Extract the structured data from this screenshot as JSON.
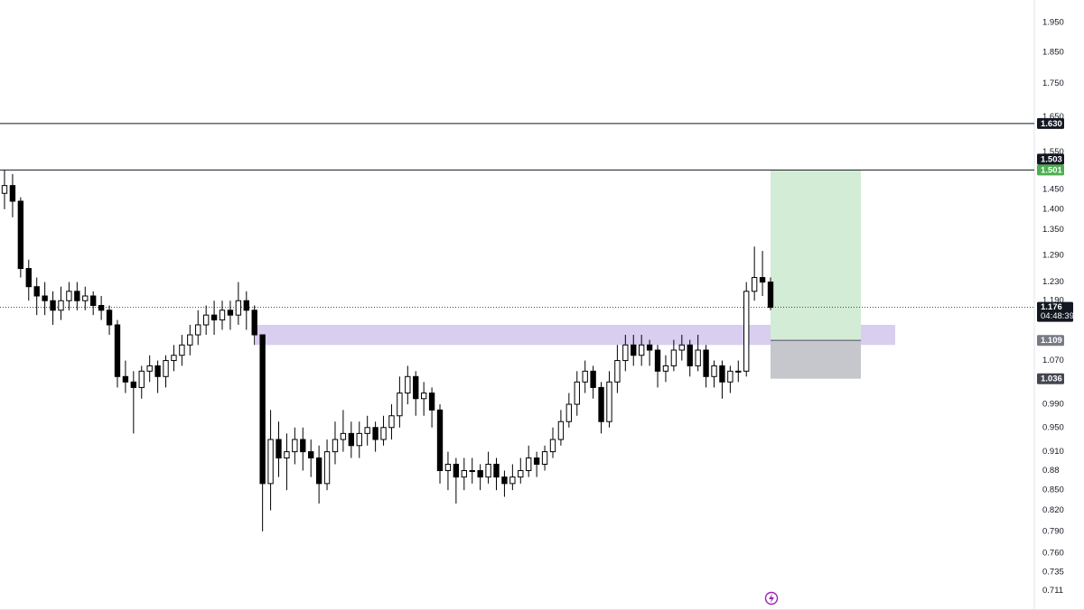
{
  "chart_data": {
    "type": "candlestick",
    "log_scale": true,
    "grid": false,
    "up_color": "#ffffff",
    "down_color": "#000000",
    "ylim": [
      0.687,
      2.03
    ],
    "yticks": [
      {
        "value": 1.95,
        "label": "1.950"
      },
      {
        "value": 1.85,
        "label": "1.850"
      },
      {
        "value": 1.75,
        "label": "1.750"
      },
      {
        "value": 1.65,
        "label": "1.650"
      },
      {
        "value": 1.55,
        "label": "1.550"
      },
      {
        "value": 1.45,
        "label": "1.450"
      },
      {
        "value": 1.4,
        "label": "1.400"
      },
      {
        "value": 1.35,
        "label": "1.350"
      },
      {
        "value": 1.29,
        "label": "1.290"
      },
      {
        "value": 1.23,
        "label": "1.230"
      },
      {
        "value": 1.19,
        "label": "1.190"
      },
      {
        "value": 1.07,
        "label": "1.070"
      },
      {
        "value": 0.99,
        "label": "0.990"
      },
      {
        "value": 0.95,
        "label": "0.950"
      },
      {
        "value": 0.91,
        "label": "0.910"
      },
      0.88,
      {
        "value": 0.85,
        "label": "0.850"
      },
      {
        "value": 0.82,
        "label": "0.820"
      },
      {
        "value": 0.79,
        "label": "0.790"
      },
      {
        "value": 0.76,
        "label": "0.760"
      },
      0.735,
      0.711
    ],
    "open": [
      1.44,
      1.46,
      1.42,
      1.26,
      1.22,
      1.2,
      1.19,
      1.17,
      1.19,
      1.21,
      1.19,
      1.2,
      1.18,
      1.17,
      1.14,
      1.04,
      1.03,
      1.02,
      1.05,
      1.06,
      1.04,
      1.07,
      1.08,
      1.1,
      1.12,
      1.14,
      1.16,
      1.15,
      1.17,
      1.16,
      1.19,
      1.17,
      1.12,
      0.86,
      0.93,
      0.9,
      0.91,
      0.93,
      0.91,
      0.9,
      0.86,
      0.91,
      0.93,
      0.94,
      0.92,
      0.94,
      0.95,
      0.93,
      0.95,
      0.97,
      1.01,
      1.04,
      1.0,
      1.01,
      0.98,
      0.88,
      0.89,
      0.87,
      0.88,
      0.88,
      0.87,
      0.89,
      0.87,
      0.86,
      0.87,
      0.88,
      0.9,
      0.89,
      0.91,
      0.93,
      0.96,
      0.99,
      1.03,
      1.05,
      1.02,
      0.96,
      1.03,
      1.07,
      1.1,
      1.08,
      1.1,
      1.09,
      1.05,
      1.06,
      1.09,
      1.1,
      1.06,
      1.09,
      1.04,
      1.06,
      1.03,
      1.05,
      1.05,
      1.21,
      1.24,
      1.23
    ],
    "high": [
      1.5,
      1.49,
      1.43,
      1.28,
      1.24,
      1.23,
      1.21,
      1.22,
      1.23,
      1.23,
      1.22,
      1.21,
      1.2,
      1.18,
      1.15,
      1.07,
      1.05,
      1.06,
      1.08,
      1.07,
      1.08,
      1.1,
      1.12,
      1.14,
      1.17,
      1.18,
      1.19,
      1.19,
      1.19,
      1.23,
      1.21,
      1.18,
      1.12,
      0.98,
      0.96,
      0.94,
      0.95,
      0.95,
      0.93,
      0.92,
      0.93,
      0.96,
      0.98,
      0.96,
      0.96,
      0.97,
      0.96,
      0.97,
      0.99,
      1.04,
      1.06,
      1.05,
      1.03,
      1.02,
      0.99,
      0.91,
      0.9,
      0.9,
      0.9,
      0.89,
      0.91,
      0.9,
      0.88,
      0.89,
      0.9,
      0.92,
      0.91,
      0.92,
      0.95,
      0.98,
      1.01,
      1.05,
      1.07,
      1.06,
      1.03,
      1.05,
      1.1,
      1.12,
      1.12,
      1.12,
      1.11,
      1.1,
      1.08,
      1.11,
      1.12,
      1.11,
      1.12,
      1.1,
      1.07,
      1.07,
      1.06,
      1.07,
      1.23,
      1.31,
      1.3,
      1.24
    ],
    "low": [
      1.4,
      1.38,
      1.24,
      1.19,
      1.16,
      1.16,
      1.14,
      1.15,
      1.17,
      1.17,
      1.17,
      1.16,
      1.15,
      1.12,
      1.02,
      1.01,
      0.94,
      1.0,
      1.03,
      1.01,
      1.02,
      1.05,
      1.06,
      1.08,
      1.1,
      1.12,
      1.12,
      1.13,
      1.13,
      1.14,
      1.13,
      1.1,
      0.79,
      0.82,
      0.87,
      0.85,
      0.89,
      0.88,
      0.87,
      0.83,
      0.85,
      0.89,
      0.91,
      0.9,
      0.9,
      0.92,
      0.91,
      0.92,
      0.93,
      0.95,
      0.99,
      0.97,
      0.97,
      0.95,
      0.86,
      0.85,
      0.83,
      0.85,
      0.86,
      0.85,
      0.86,
      0.85,
      0.84,
      0.85,
      0.86,
      0.87,
      0.87,
      0.88,
      0.9,
      0.92,
      0.95,
      0.97,
      1.01,
      1.0,
      0.94,
      0.95,
      1.01,
      1.05,
      1.06,
      1.06,
      1.06,
      1.02,
      1.03,
      1.05,
      1.07,
      1.04,
      1.05,
      1.02,
      1.02,
      1.0,
      1.01,
      1.03,
      1.04,
      1.19,
      1.2,
      1.17
    ],
    "close": [
      1.46,
      1.42,
      1.26,
      1.22,
      1.2,
      1.19,
      1.17,
      1.19,
      1.21,
      1.19,
      1.2,
      1.18,
      1.17,
      1.14,
      1.04,
      1.03,
      1.02,
      1.05,
      1.06,
      1.04,
      1.07,
      1.08,
      1.1,
      1.12,
      1.14,
      1.16,
      1.15,
      1.17,
      1.16,
      1.19,
      1.17,
      1.12,
      0.86,
      0.93,
      0.9,
      0.91,
      0.93,
      0.91,
      0.9,
      0.86,
      0.91,
      0.93,
      0.94,
      0.92,
      0.94,
      0.95,
      0.93,
      0.95,
      0.97,
      1.01,
      1.04,
      1.0,
      1.01,
      0.98,
      0.88,
      0.89,
      0.87,
      0.88,
      0.88,
      0.87,
      0.89,
      0.87,
      0.86,
      0.87,
      0.88,
      0.9,
      0.89,
      0.91,
      0.93,
      0.96,
      0.99,
      1.03,
      1.05,
      1.02,
      0.96,
      1.03,
      1.07,
      1.1,
      1.08,
      1.1,
      1.09,
      1.05,
      1.06,
      1.09,
      1.1,
      1.06,
      1.09,
      1.04,
      1.06,
      1.03,
      1.05,
      1.05,
      1.21,
      1.24,
      1.23,
      1.176
    ],
    "levels": [
      {
        "value": 1.63,
        "label": "1.630",
        "color": "#131722"
      },
      {
        "value": 1.501,
        "label": "1.501",
        "color": "#4caf50"
      }
    ],
    "extra_tags": [
      {
        "value": 1.503,
        "label": "1.503",
        "color": "#131722"
      }
    ],
    "last_price": {
      "value": 1.176,
      "label": "1.176",
      "countdown": "04:48:39",
      "color": "#131722"
    },
    "zone": {
      "from": 1.1,
      "to": 1.14,
      "color": "#d9cdf0"
    },
    "position": {
      "entry": {
        "value": 1.109,
        "label": "1.109",
        "color": "#787b86"
      },
      "stop": {
        "value": 1.036,
        "label": "1.036",
        "color": "#434651"
      },
      "target_color": "#d3ecd5",
      "stop_color": "#c6c7cc"
    }
  }
}
